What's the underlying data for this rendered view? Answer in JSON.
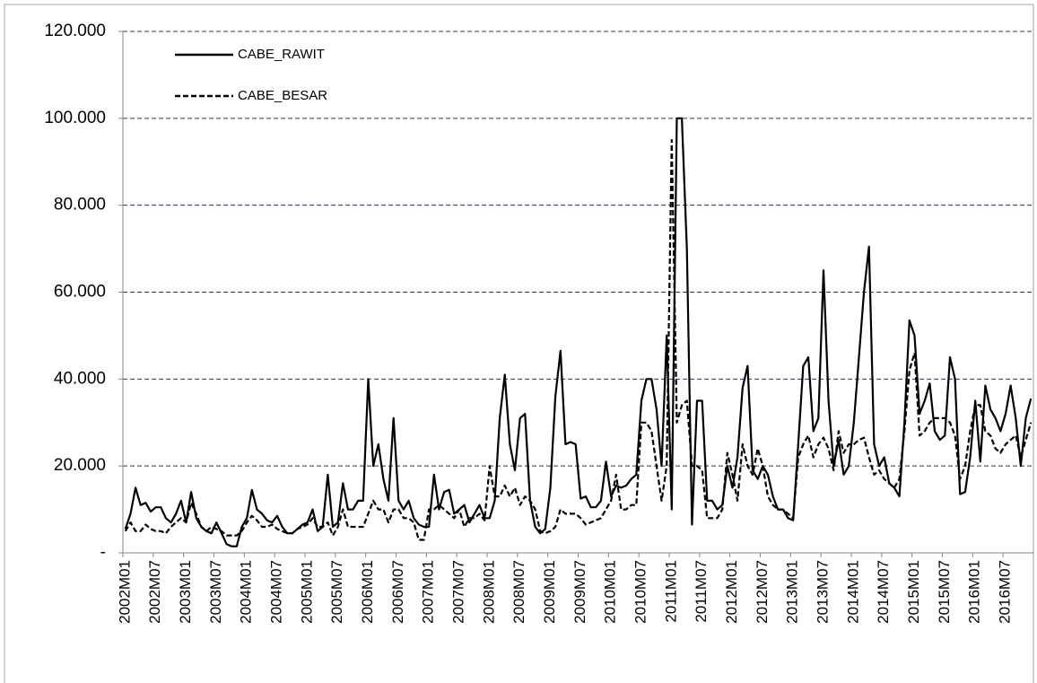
{
  "chart_data": {
    "type": "line",
    "categories": [
      "2002M01",
      null,
      null,
      null,
      null,
      null,
      "2002M07",
      null,
      null,
      null,
      null,
      null,
      "2003M01",
      null,
      null,
      null,
      null,
      null,
      "2003M07",
      null,
      null,
      null,
      null,
      null,
      "2004M01",
      null,
      null,
      null,
      null,
      null,
      "2004M07",
      null,
      null,
      null,
      null,
      null,
      "2005M01",
      null,
      null,
      null,
      null,
      null,
      "2005M07",
      null,
      null,
      null,
      null,
      null,
      "2006M01",
      null,
      null,
      null,
      null,
      null,
      "2006M07",
      null,
      null,
      null,
      null,
      null,
      "2007M01",
      null,
      null,
      null,
      null,
      null,
      "2007M07",
      null,
      null,
      null,
      null,
      null,
      "2008M01",
      null,
      null,
      null,
      null,
      null,
      "2008M07",
      null,
      null,
      null,
      null,
      null,
      "2009M01",
      null,
      null,
      null,
      null,
      null,
      "2009M07",
      null,
      null,
      null,
      null,
      null,
      "2010M01",
      null,
      null,
      null,
      null,
      null,
      "2010M07",
      null,
      null,
      null,
      null,
      null,
      "2011M01",
      null,
      null,
      null,
      null,
      null,
      "2011M07",
      null,
      null,
      null,
      null,
      null,
      "2012M01",
      null,
      null,
      null,
      null,
      null,
      "2012M07",
      null,
      null,
      null,
      null,
      null,
      "2013M01",
      null,
      null,
      null,
      null,
      null,
      "2013M07",
      null,
      null,
      null,
      null,
      null,
      "2014M01",
      null,
      null,
      null,
      null,
      null,
      "2014M07",
      null,
      null,
      null,
      null,
      null,
      "2015M01",
      null,
      null,
      null,
      null,
      null,
      "2015M07",
      null,
      null,
      null,
      null,
      null,
      "2016M01",
      null,
      null,
      null,
      null,
      null,
      "2016M07",
      null,
      null,
      null,
      null,
      null
    ],
    "series": [
      {
        "name": "CABE_RAWIT",
        "color": "#000000",
        "dash": "solid",
        "values": [
          5500,
          9000,
          15000,
          11000,
          11500,
          9500,
          10500,
          10500,
          8000,
          7000,
          9000,
          12000,
          7000,
          14000,
          8000,
          6000,
          5000,
          4500,
          7000,
          4500,
          2000,
          1500,
          1500,
          6000,
          8000,
          14500,
          10000,
          9000,
          7500,
          7000,
          8500,
          6000,
          4500,
          4500,
          5500,
          6500,
          7000,
          10000,
          5000,
          6000,
          18000,
          6000,
          7000,
          16000,
          10000,
          10000,
          12000,
          12000,
          40000,
          20000,
          25000,
          17000,
          12000,
          31000,
          12000,
          10000,
          12000,
          8000,
          6500,
          6000,
          6000,
          18000,
          10000,
          14000,
          14500,
          9000,
          10000,
          11000,
          7000,
          9000,
          11000,
          8000,
          8000,
          12000,
          31000,
          41000,
          25000,
          19000,
          31000,
          32000,
          12000,
          6000,
          4500,
          5500,
          15000,
          36000,
          46500,
          25000,
          25500,
          25000,
          12500,
          13000,
          10500,
          10500,
          12000,
          21000,
          13000,
          15500,
          15000,
          15500,
          17000,
          18000,
          35000,
          40000,
          40000,
          33000,
          20000,
          50000,
          10000,
          100000,
          100000,
          70000,
          6500,
          35000,
          35000,
          12000,
          12000,
          10000,
          11000,
          20000,
          15000,
          22000,
          38000,
          43000,
          19000,
          17000,
          20000,
          18000,
          13000,
          10000,
          10000,
          8000,
          7500,
          25000,
          43000,
          45000,
          28000,
          31000,
          65000,
          35000,
          20000,
          26000,
          18000,
          20000,
          30000,
          45000,
          60000,
          70500,
          25000,
          20000,
          22000,
          16000,
          15000,
          13000,
          30000,
          53500,
          50000,
          32000,
          35000,
          39000,
          28000,
          26000,
          27000,
          45000,
          40000,
          13500,
          14000,
          22000,
          35000,
          21000,
          38500,
          33000,
          31000,
          28000,
          32000,
          38500,
          31000,
          20000,
          31000,
          35500
        ]
      },
      {
        "name": "CABE_BESAR",
        "color": "#000000",
        "dash": "dashed",
        "values": [
          5000,
          7000,
          5000,
          5000,
          6500,
          5500,
          5000,
          5000,
          4500,
          6000,
          7000,
          8000,
          7000,
          11500,
          9000,
          6000,
          5000,
          6000,
          5500,
          5000,
          4000,
          4000,
          4000,
          5000,
          7000,
          8500,
          7500,
          6000,
          6000,
          6500,
          5500,
          5000,
          4500,
          4500,
          5500,
          6000,
          6500,
          8000,
          6000,
          6000,
          7000,
          4000,
          6000,
          10000,
          6000,
          6000,
          6000,
          6000,
          9000,
          12000,
          10000,
          10000,
          7000,
          10000,
          10000,
          8000,
          8000,
          7000,
          3000,
          3000,
          10000,
          10000,
          11000,
          10000,
          9000,
          8000,
          10000,
          6000,
          8000,
          8000,
          9000,
          7500,
          20000,
          13000,
          13000,
          15500,
          13000,
          15000,
          11000,
          13000,
          12000,
          10000,
          5000,
          4500,
          5000,
          6000,
          10000,
          9000,
          9000,
          9000,
          8000,
          6500,
          7000,
          7500,
          8000,
          10000,
          12000,
          18000,
          10000,
          10000,
          11000,
          11000,
          30000,
          30000,
          28000,
          20000,
          12000,
          20000,
          95000,
          30000,
          34000,
          35000,
          20000,
          20000,
          19000,
          8000,
          8000,
          8000,
          10000,
          23000,
          18000,
          12000,
          25000,
          20000,
          18000,
          24000,
          20000,
          13000,
          11000,
          10000,
          10000,
          9000,
          8000,
          22000,
          25000,
          27000,
          22000,
          25000,
          26500,
          24000,
          19000,
          28000,
          23000,
          25000,
          25000,
          26000,
          26500,
          22000,
          18000,
          19000,
          17000,
          16000,
          15000,
          17000,
          28000,
          42000,
          46000,
          27000,
          28000,
          30000,
          31000,
          31000,
          31000,
          30000,
          27000,
          17000,
          20000,
          28000,
          34000,
          34000,
          28000,
          27000,
          24000,
          23000,
          25000,
          26000,
          27000,
          22000,
          26000,
          30000
        ]
      }
    ],
    "ylim": [
      0,
      120000
    ],
    "yticks": [
      {
        "value": 0,
        "label": "-"
      },
      {
        "value": 20000,
        "label": "20.000"
      },
      {
        "value": 40000,
        "label": "40.000"
      },
      {
        "value": 60000,
        "label": "60.000"
      },
      {
        "value": 80000,
        "label": "80.000"
      },
      {
        "value": 100000,
        "label": "100.000"
      },
      {
        "value": 120000,
        "label": "120.000"
      }
    ],
    "grid": true,
    "grid_color": "#1f3864",
    "legend": "top-left"
  }
}
